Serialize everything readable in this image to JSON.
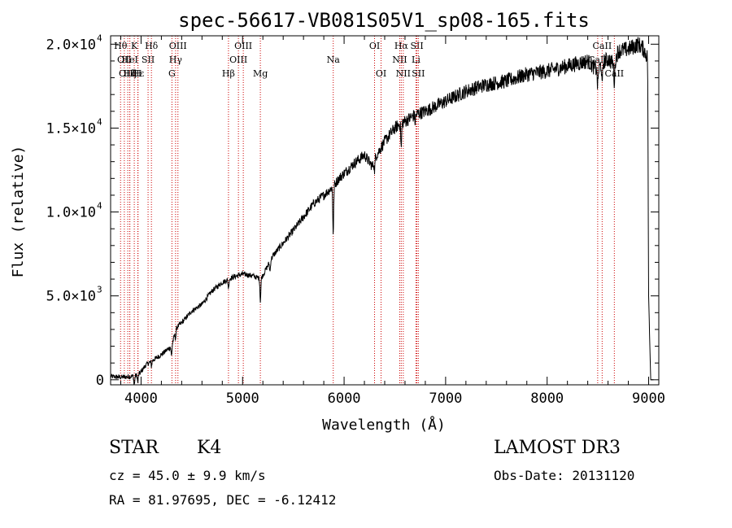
{
  "chart_data": {
    "type": "line",
    "title": "spec-56617-VB081S05V1_sp08-165.fits",
    "xlabel": "Wavelength (Å)",
    "ylabel": "Flux (relative)",
    "xlim": [
      3700,
      9100
    ],
    "ylim": [
      -300,
      20500
    ],
    "xticks": [
      4000,
      5000,
      6000,
      7000,
      8000,
      9000
    ],
    "xtick_labels": [
      "4000",
      "5000",
      "6000",
      "7000",
      "8000",
      "9000"
    ],
    "yticks": [
      {
        "value": 0,
        "mant": "0",
        "exp": ""
      },
      {
        "value": 5000,
        "mant": "5.0×10",
        "exp": "3"
      },
      {
        "value": 10000,
        "mant": "1.0×10",
        "exp": "4"
      },
      {
        "value": 15000,
        "mant": "1.5×10",
        "exp": "4"
      },
      {
        "value": 20000,
        "mant": "2.0×10",
        "exp": "4"
      }
    ],
    "spectrum": {
      "name": "flux",
      "x": [
        3700,
        3800,
        3900,
        3950,
        3990,
        4050,
        4100,
        4200,
        4300,
        4350,
        4400,
        4500,
        4600,
        4700,
        4800,
        4900,
        5000,
        5100,
        5180,
        5300,
        5500,
        5700,
        5800,
        5890,
        5950,
        6100,
        6200,
        6280,
        6300,
        6400,
        6500,
        6560,
        6600,
        6700,
        6800,
        7000,
        7200,
        7400,
        7600,
        7800,
        8000,
        8200,
        8400,
        8500,
        8540,
        8600,
        8660,
        8700,
        8800,
        8900,
        8950,
        8990,
        9000,
        9020,
        9050
      ],
      "y": [
        200,
        150,
        200,
        250,
        400,
        900,
        1100,
        1500,
        2000,
        3100,
        3400,
        4100,
        4500,
        5300,
        5800,
        6100,
        6300,
        6200,
        6000,
        7400,
        8900,
        10500,
        11000,
        11500,
        12000,
        12900,
        13400,
        12700,
        13200,
        14200,
        15000,
        15300,
        15400,
        15800,
        16000,
        16600,
        17200,
        17600,
        17800,
        18200,
        18400,
        18700,
        19000,
        18400,
        18900,
        19100,
        18800,
        19600,
        19700,
        20000,
        19700,
        19200,
        5000,
        0,
        0
      ]
    },
    "absorption_features": [
      {
        "x": 3933,
        "depth": 600
      },
      {
        "x": 3968,
        "depth": 500
      },
      {
        "x": 4102,
        "depth": 300
      },
      {
        "x": 4300,
        "depth": 600
      },
      {
        "x": 4340,
        "depth": 400
      },
      {
        "x": 4861,
        "depth": 500
      },
      {
        "x": 5175,
        "depth": 1300
      },
      {
        "x": 5270,
        "depth": 600
      },
      {
        "x": 5893,
        "depth": 2800
      },
      {
        "x": 6300,
        "depth": 700
      },
      {
        "x": 6563,
        "depth": 1500
      },
      {
        "x": 6700,
        "depth": 400
      },
      {
        "x": 8498,
        "depth": 900
      },
      {
        "x": 8542,
        "depth": 1500
      },
      {
        "x": 8662,
        "depth": 1100
      }
    ],
    "line_markers": [
      {
        "x": 3798,
        "label": "Hθ",
        "row": 0
      },
      {
        "x": 3835,
        "label": "OII",
        "row": 1
      },
      {
        "x": 3869,
        "label": "OIII",
        "row": 2
      },
      {
        "x": 3889,
        "label": "Hζ",
        "row": 2
      },
      {
        "x": 3933,
        "label": "K",
        "row": 0
      },
      {
        "x": 3968,
        "label": "H",
        "row": 2
      },
      {
        "x": 3970,
        "label": "Hε",
        "row": 2
      },
      {
        "x": 3889,
        "label": "HeI",
        "row": 1
      },
      {
        "x": 4069,
        "label": "SII",
        "row": 1
      },
      {
        "x": 4102,
        "label": "Hδ",
        "row": 0
      },
      {
        "x": 4304,
        "label": "G",
        "row": 2
      },
      {
        "x": 4340,
        "label": "Hγ",
        "row": 1
      },
      {
        "x": 4363,
        "label": "OIII",
        "row": 0
      },
      {
        "x": 4861,
        "label": "Hβ",
        "row": 2
      },
      {
        "x": 4959,
        "label": "OIII",
        "row": 1
      },
      {
        "x": 5007,
        "label": "OIII",
        "row": 0
      },
      {
        "x": 5175,
        "label": "Mg",
        "row": 2
      },
      {
        "x": 5893,
        "label": "Na",
        "row": 1
      },
      {
        "x": 6300,
        "label": "OI",
        "row": 0
      },
      {
        "x": 6364,
        "label": "OI",
        "row": 2
      },
      {
        "x": 6548,
        "label": "NII",
        "row": 1
      },
      {
        "x": 6563,
        "label": "Hα",
        "row": 0
      },
      {
        "x": 6583,
        "label": "NII",
        "row": 2
      },
      {
        "x": 6708,
        "label": "Li",
        "row": 1
      },
      {
        "x": 6717,
        "label": "SII",
        "row": 0
      },
      {
        "x": 6731,
        "label": "SII",
        "row": 2
      },
      {
        "x": 8498,
        "label": "CaII",
        "row": 1
      },
      {
        "x": 8542,
        "label": "CaII",
        "row": 0
      },
      {
        "x": 8662,
        "label": "CaII",
        "row": 2
      }
    ],
    "marker_color": "#cc0000"
  },
  "info": {
    "class": "STAR",
    "subclass": "K4",
    "survey": "LAMOST DR3",
    "redshift": "cz = 45.0 ± 9.9 km/s",
    "obs_date": "Obs-Date: 20131120",
    "coords": "RA =  81.97695, DEC =  -6.12412"
  }
}
